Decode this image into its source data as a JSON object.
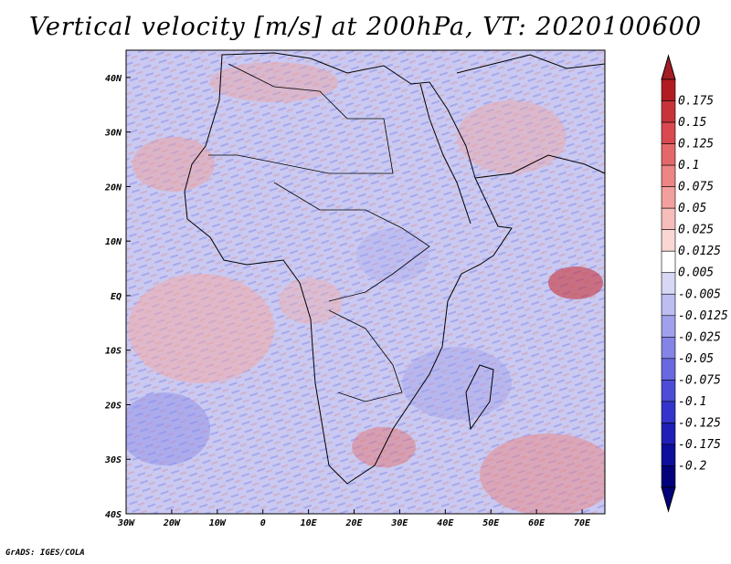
{
  "title": "Vertical velocity [m/s] at 200hPa, VT: 2020100600",
  "footer": "GrADS: IGES/COLA",
  "map": {
    "projection": "latlon",
    "lon_range": [
      -30,
      75
    ],
    "lat_range": [
      -40,
      45
    ],
    "lon_ticks": [
      {
        "value": -30,
        "label": "30W"
      },
      {
        "value": -20,
        "label": "20W"
      },
      {
        "value": -10,
        "label": "10W"
      },
      {
        "value": 0,
        "label": "0"
      },
      {
        "value": 10,
        "label": "10E"
      },
      {
        "value": 20,
        "label": "20E"
      },
      {
        "value": 30,
        "label": "30E"
      },
      {
        "value": 40,
        "label": "40E"
      },
      {
        "value": 50,
        "label": "50E"
      },
      {
        "value": 60,
        "label": "60E"
      },
      {
        "value": 70,
        "label": "70E"
      }
    ],
    "lat_ticks": [
      {
        "value": 40,
        "label": "40N"
      },
      {
        "value": 30,
        "label": "30N"
      },
      {
        "value": 20,
        "label": "20N"
      },
      {
        "value": 10,
        "label": "10N"
      },
      {
        "value": 0,
        "label": "EQ"
      },
      {
        "value": -10,
        "label": "10S"
      },
      {
        "value": -20,
        "label": "20S"
      },
      {
        "value": -30,
        "label": "30S"
      },
      {
        "value": -40,
        "label": "40S"
      }
    ],
    "field": "vertical velocity",
    "units": "m/s",
    "level": "200hPa"
  },
  "colorbar": {
    "levels": [
      "0.175",
      "0.15",
      "0.125",
      "0.1",
      "0.075",
      "0.05",
      "0.025",
      "0.0125",
      "0.005",
      "-0.005",
      "-0.0125",
      "-0.025",
      "-0.05",
      "-0.075",
      "-0.1",
      "-0.125",
      "-0.175",
      "-0.2"
    ],
    "colors": [
      "#b01c22",
      "#c8333a",
      "#d9494f",
      "#e4686a",
      "#ec8584",
      "#f2a09e",
      "#f6bdbb",
      "#fad6d4",
      "#ffffff",
      "#d8d8f6",
      "#bdbdf2",
      "#a0a0ec",
      "#8484e6",
      "#6868e0",
      "#4c4cd8",
      "#3434cc",
      "#1f1fb8",
      "#0e0e9c",
      "#02027a"
    ],
    "over_color": "#a51d24",
    "under_color": "#02027a"
  }
}
